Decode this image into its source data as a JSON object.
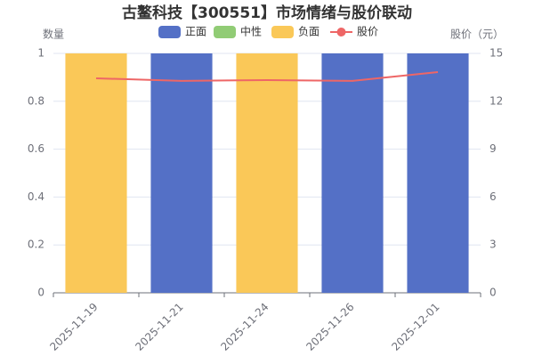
{
  "chart_data": {
    "type": "bar",
    "stacked": true,
    "title": "古鳌科技【300551】市场情绪与股价联动",
    "ylabel": "数量",
    "y2label": "股价（元）",
    "categories": [
      "2025-11-19",
      "2025-11-21",
      "2025-11-24",
      "2025-11-26",
      "2025-12-01"
    ],
    "series": [
      {
        "name": "正面",
        "color": "#5470c6",
        "values": [
          0,
          1,
          0,
          1,
          1
        ]
      },
      {
        "name": "中性",
        "color": "#91cc75",
        "values": [
          0,
          0,
          0,
          0,
          0
        ]
      },
      {
        "name": "负面",
        "color": "#fac858",
        "values": [
          1,
          0,
          1,
          0,
          0
        ]
      },
      {
        "name": "股价",
        "color": "#ee6666",
        "type": "line",
        "axis": "y2",
        "values": [
          13.44,
          13.28,
          13.33,
          13.28,
          13.83
        ]
      }
    ],
    "ylim": [
      0,
      1
    ],
    "yticks": [
      0,
      0.2,
      0.4,
      0.6,
      0.8,
      1
    ],
    "y2lim": [
      0,
      15
    ],
    "y2ticks": [
      0,
      3,
      6,
      9,
      12,
      15
    ],
    "grid": true,
    "legend": "top"
  }
}
